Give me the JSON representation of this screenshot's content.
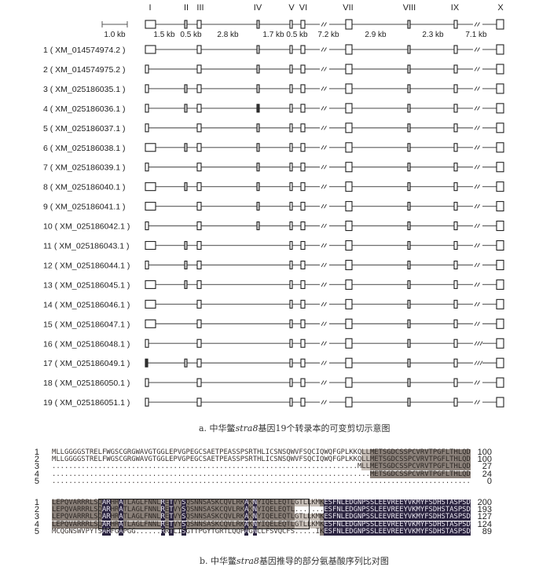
{
  "gene_structure": {
    "exon_labels": [
      "I",
      "II",
      "III",
      "IV",
      "V",
      "VI",
      "VII",
      "VIII",
      "IX",
      "X"
    ],
    "scale_bar_label": "1.0 kb",
    "intron_labels": [
      "1.5 kb",
      "0.5 kb",
      "2.8 kb",
      "1.7 kb",
      "0.5 kb",
      "7.2 kb",
      "2.9 kb",
      "2.3 kb",
      "7.1 kb"
    ],
    "transcripts": [
      {
        "label": "1 ( XM_014574974.2 )",
        "first_exon": "large",
        "exons": [
          "I",
          "III",
          "IV",
          "V",
          "VI",
          "VII",
          "VIII",
          "IX",
          "X"
        ]
      },
      {
        "label": "2 ( XM_014574975.2 )",
        "first_exon": "small",
        "exons": [
          "I",
          "III",
          "IV",
          "V",
          "VI",
          "VII",
          "VIII",
          "IX",
          "X"
        ]
      },
      {
        "label": "3 ( XM_025186035.1 )",
        "first_exon": "small",
        "exons": [
          "I",
          "II",
          "III",
          "IV",
          "V",
          "VI",
          "VII",
          "VIII",
          "IX",
          "X"
        ]
      },
      {
        "label": "4 ( XM_025186036.1 )",
        "first_exon": "small",
        "exons": [
          "I",
          "II",
          "III",
          "IV",
          "V",
          "VI",
          "VII",
          "VIII",
          "IX",
          "X"
        ],
        "filled": [
          "IV"
        ]
      },
      {
        "label": "5 ( XM_025186037.1 )",
        "first_exon": "small",
        "exons": [
          "I",
          "III",
          "IV",
          "V",
          "VI",
          "VII",
          "VIII",
          "IX",
          "X"
        ]
      },
      {
        "label": "6 ( XM_025186038.1 )",
        "first_exon": "large",
        "exons": [
          "I",
          "II",
          "III",
          "IV",
          "V",
          "VI",
          "VII",
          "VIII",
          "IX",
          "X"
        ]
      },
      {
        "label": "7 ( XM_025186039.1 )",
        "first_exon": "small",
        "exons": [
          "I",
          "III",
          "IV",
          "V",
          "VI",
          "VII",
          "VIII",
          "IX",
          "X"
        ]
      },
      {
        "label": "8 ( XM_025186040.1 )",
        "first_exon": "large",
        "exons": [
          "I",
          "II",
          "III",
          "IV",
          "V",
          "VI",
          "VII",
          "VIII",
          "IX",
          "X"
        ]
      },
      {
        "label": "9 ( XM_025186041.1 )",
        "first_exon": "large",
        "exons": [
          "I",
          "III",
          "IV",
          "V",
          "VI",
          "VII",
          "VIII",
          "IX",
          "X"
        ]
      },
      {
        "label": "10 ( XM_025186042.1 )",
        "first_exon": "small",
        "exons": [
          "I",
          "III",
          "IV",
          "V",
          "VI",
          "VII",
          "VIII",
          "IX",
          "X"
        ]
      },
      {
        "label": "11 ( XM_025186043.1 )",
        "first_exon": "large",
        "exons": [
          "I",
          "II",
          "III",
          "V",
          "VI",
          "VII",
          "VIII",
          "IX",
          "X"
        ]
      },
      {
        "label": "12 ( XM_025186044.1 )",
        "first_exon": "small",
        "exons": [
          "I",
          "II",
          "III",
          "V",
          "VI",
          "VII",
          "VIII",
          "IX",
          "X"
        ]
      },
      {
        "label": "13 ( XM_025186045.1 )",
        "first_exon": "large",
        "exons": [
          "I",
          "II",
          "III",
          "V",
          "VI",
          "VII",
          "VIII",
          "IX",
          "X"
        ]
      },
      {
        "label": "14 ( XM_025186046.1 )",
        "first_exon": "large",
        "exons": [
          "I",
          "III",
          "V",
          "VI",
          "VII",
          "VIII",
          "IX",
          "X"
        ]
      },
      {
        "label": "15 ( XM_025186047.1 )",
        "first_exon": "large",
        "exons": [
          "I",
          "III",
          "V",
          "VI",
          "VII",
          "VIII",
          "IX",
          "X"
        ]
      },
      {
        "label": "16 ( XM_025186048.1 )",
        "first_exon": "small",
        "exons": [
          "I",
          "III",
          "V",
          "VI",
          "VII",
          "VIII",
          "IX",
          "X"
        ]
      },
      {
        "label": "17 ( XM_025186049.1 )",
        "first_exon": "filled",
        "exons": [
          "I",
          "II",
          "III",
          "V",
          "VI",
          "VII",
          "VIII",
          "IX",
          "X"
        ]
      },
      {
        "label": "18 ( XM_025186050.1 )",
        "first_exon": "small",
        "exons": [
          "I",
          "III",
          "V",
          "VI",
          "VII",
          "VIII",
          "IX",
          "X"
        ]
      },
      {
        "label": "19 ( XM_025186051.1 )",
        "first_exon": "small",
        "exons": [
          "I",
          "III",
          "V",
          "VI",
          "VII",
          "VIII",
          "IX",
          "X"
        ]
      }
    ],
    "caption_prefix": "a.  中华鳖",
    "caption_gene": "stra8",
    "caption_suffix": "基因19个转录本的可变剪切示意图"
  },
  "alignment": {
    "blocks": [
      {
        "rows": [
          {
            "num": "1",
            "seq": "MLLGGGGSTRELFWGSCGRGWAVGTGGLEPVGPEGCSAETPEASSPSRTHLICSNSQWVFSQCIQWQFGPLKKQLLMETSGDCSSPCVRVTPGFLTHLQD",
            "count": "100"
          },
          {
            "num": "2",
            "seq": "MLLGGGGSTRELFWGSCGRGWAVGTGGLEPVGPEGCSAETPEASSPSRTHLICSNSQWVFSQCIQWQFGPLKKQLLMETSGDCSSPCVRVTPGFLTHLQD",
            "count": "100"
          },
          {
            "num": "3",
            "seq": ".........................................................................MLLMETSGDCSSPCVRVTPGFLTHLQD",
            "count": "27"
          },
          {
            "num": "4",
            "seq": "............................................................................METSGDCSSPCVRVTPGFLTHLQD",
            "count": "24"
          },
          {
            "num": "5",
            "seq": "....................................................................................................",
            "count": "0"
          }
        ]
      },
      {
        "rows": [
          {
            "num": "1",
            "seq": "LEPQVARRRLSQARHRATLAGLFNNLRETVYSQSNNSASKCQVLRKAKNYIQELEQTLGTLLKMKESFNLEDGNPSSLEEVREEYVKMYFSDHSTASPSD",
            "count": "200"
          },
          {
            "num": "2",
            "seq": "LEPQVARRRLSQARHRATLAGLFNNLRETVYSQSNNSASKCQVLRKAKNYIQELEQTL.......ESFNLEDGNPSSLEEVREEYVKMYFSDHSTASPSD",
            "count": "193"
          },
          {
            "num": "3",
            "seq": "LEPQVARRRLSQARHRATLAGLFNNLRETVYSQSNNSASKCQVLRKAKNYIQELEQTLGTLLKMKESFNLEDGNPSSLEEVREEYVKMYFSDHSTASPSD",
            "count": "127"
          },
          {
            "num": "4",
            "seq": "LEPQVARRRLSQARHRATLAGLFNNLRETVYSQSNNSASKCQVLRKAKNYIQELEQTLGTLLKMKESFNLEDGNPSSLEEVREEYVKMYFSDHSTASPSD",
            "count": "124"
          },
          {
            "num": "5",
            "seq": "MCQGNSWVPYTSARFGAPGG......RRTLISGTTPGYTGRTLQQPAGNCLFSVQCFS.....IKESFNLEDGNPSSLEEVREEYVKMYFSDHSTASPSD",
            "count": "89"
          }
        ]
      }
    ],
    "colors": {
      "identical": "#2b2440",
      "conserved": "#8a8079",
      "similar": "#c7bfb8"
    },
    "caption_prefix": "b.  中华鳖",
    "caption_gene": "stra8",
    "caption_suffix": "基因推导的部分氨基酸序列比对图"
  }
}
